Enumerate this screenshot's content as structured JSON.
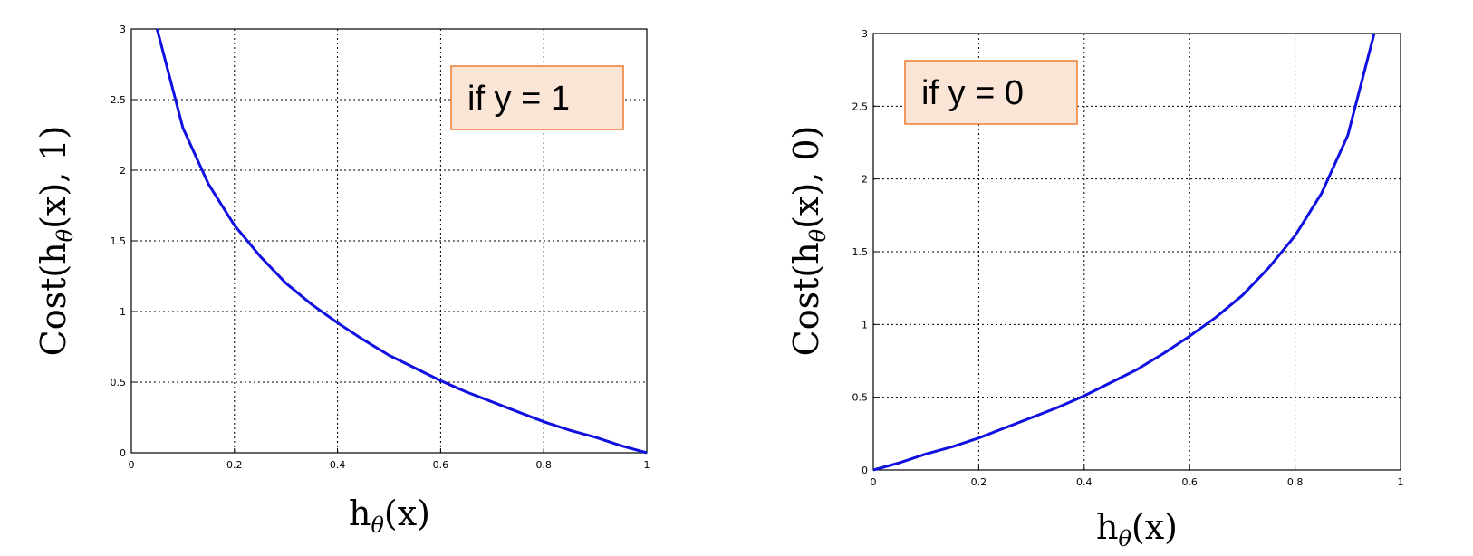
{
  "colors": {
    "curve": "#1010e0",
    "legend_fill": "#fbe5d6",
    "legend_stroke": "#ed7d31"
  },
  "chart_data": [
    {
      "type": "line",
      "xlabel_base": "h",
      "xlabel_sub": "θ",
      "xlabel_arg": "(x)",
      "ylabel_pre": "Cost(h",
      "ylabel_sub": "θ",
      "ylabel_post": "(x), 1)",
      "annotation": "if y = 1",
      "xlim": [
        0,
        1
      ],
      "ylim": [
        0,
        3
      ],
      "xticks": [
        0,
        0.2,
        0.4,
        0.6,
        0.8,
        1
      ],
      "xtick_labels": [
        "0",
        "0.2",
        "0.4",
        "0.6",
        "0.8",
        "1"
      ],
      "yticks": [
        0,
        0.5,
        1,
        1.5,
        2,
        2.5,
        3
      ],
      "ytick_labels": [
        "0",
        "0.5",
        "1",
        "1.5",
        "2",
        "2.5",
        "3"
      ],
      "grid": true,
      "series": [
        {
          "x": [
            0.05,
            0.1,
            0.15,
            0.2,
            0.25,
            0.3,
            0.35,
            0.4,
            0.45,
            0.5,
            0.55,
            0.6,
            0.65,
            0.7,
            0.75,
            0.8,
            0.85,
            0.9,
            0.95,
            1.0
          ],
          "y": [
            3.0,
            2.3,
            1.9,
            1.61,
            1.39,
            1.2,
            1.05,
            0.92,
            0.8,
            0.69,
            0.6,
            0.51,
            0.43,
            0.36,
            0.29,
            0.22,
            0.16,
            0.11,
            0.05,
            0.0
          ]
        }
      ]
    },
    {
      "type": "line",
      "xlabel_base": "h",
      "xlabel_sub": "θ",
      "xlabel_arg": "(x)",
      "ylabel_pre": "Cost(h",
      "ylabel_sub": "θ",
      "ylabel_post": "(x), 0)",
      "annotation": "if y = 0",
      "xlim": [
        0,
        1
      ],
      "ylim": [
        0,
        3
      ],
      "xticks": [
        0,
        0.2,
        0.4,
        0.6,
        0.8,
        1
      ],
      "xtick_labels": [
        "0",
        "0.2",
        "0.4",
        "0.6",
        "0.8",
        "1"
      ],
      "yticks": [
        0,
        0.5,
        1,
        1.5,
        2,
        2.5,
        3
      ],
      "ytick_labels": [
        "0",
        "0.5",
        "1",
        "1.5",
        "2",
        "2.5",
        "3"
      ],
      "grid": true,
      "series": [
        {
          "x": [
            0.0,
            0.05,
            0.1,
            0.15,
            0.2,
            0.25,
            0.3,
            0.35,
            0.4,
            0.45,
            0.5,
            0.55,
            0.6,
            0.65,
            0.7,
            0.75,
            0.8,
            0.85,
            0.9,
            0.95
          ],
          "y": [
            0.0,
            0.05,
            0.11,
            0.16,
            0.22,
            0.29,
            0.36,
            0.43,
            0.51,
            0.6,
            0.69,
            0.8,
            0.92,
            1.05,
            1.2,
            1.39,
            1.61,
            1.9,
            2.3,
            3.0
          ]
        }
      ]
    }
  ]
}
